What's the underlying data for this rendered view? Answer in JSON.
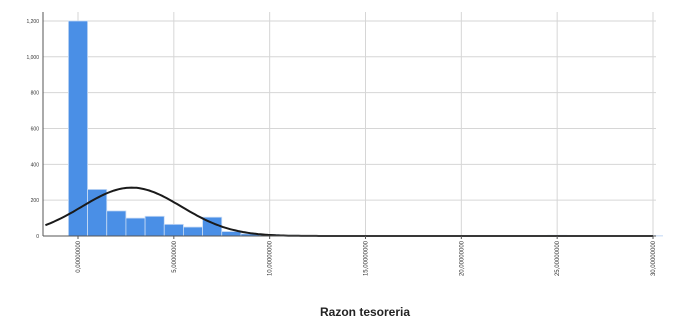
{
  "chart_data": {
    "type": "bar",
    "xlabel": "Razon tesoreria",
    "ylabel": "",
    "ylim": [
      0,
      1250
    ],
    "grid": true,
    "yticks": [
      "0",
      "200",
      "400",
      "600",
      "800",
      "1,000",
      "1,200"
    ],
    "ytick_values": [
      0,
      200,
      400,
      600,
      800,
      1000,
      1200
    ],
    "xticks": [
      "0,00000000",
      "5,00000000",
      "10,00000000",
      "15,00000000",
      "20,00000000",
      "25,00000000",
      "30,00000000"
    ],
    "xtick_values": [
      0,
      5,
      10,
      15,
      20,
      25,
      30
    ],
    "bins": [
      {
        "x0": -0.5,
        "x1": 0.5,
        "count": 1200
      },
      {
        "x0": 0.5,
        "x1": 1.5,
        "count": 260
      },
      {
        "x0": 1.5,
        "x1": 2.5,
        "count": 140
      },
      {
        "x0": 2.5,
        "x1": 3.5,
        "count": 100
      },
      {
        "x0": 3.5,
        "x1": 4.5,
        "count": 110
      },
      {
        "x0": 4.5,
        "x1": 5.5,
        "count": 65
      },
      {
        "x0": 5.5,
        "x1": 6.5,
        "count": 50
      },
      {
        "x0": 6.5,
        "x1": 7.5,
        "count": 105
      },
      {
        "x0": 7.5,
        "x1": 8.5,
        "count": 25
      },
      {
        "x0": 8.5,
        "x1": 9.5,
        "count": 12
      },
      {
        "x0": 9.5,
        "x1": 10.5,
        "count": 8
      },
      {
        "x0": 10.5,
        "x1": 11.5,
        "count": 4
      },
      {
        "x0": 11.5,
        "x1": 12.5,
        "count": 3
      },
      {
        "x0": 14.5,
        "x1": 15.5,
        "count": 2
      },
      {
        "x0": 19.5,
        "x1": 20.5,
        "count": 2
      },
      {
        "x0": 24.5,
        "x1": 25.5,
        "count": 4
      },
      {
        "x0": 29.5,
        "x1": 30.5,
        "count": 2
      }
    ],
    "normal_curve": {
      "mean": 2.8,
      "sd": 2.6,
      "peak": 270
    },
    "colors": {
      "bar": "#4a8fe6",
      "bar_edge": "#c9dcf5",
      "curve": "#1a1a1a",
      "grid": "#d6d6d6",
      "axis": "#555555"
    }
  }
}
